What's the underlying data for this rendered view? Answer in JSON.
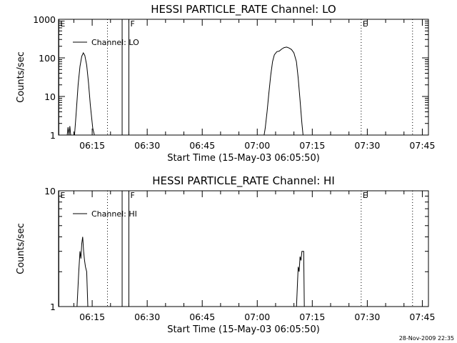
{
  "chart_data": [
    {
      "type": "line",
      "title": "HESSI PARTICLE_RATE Channel: LO",
      "xlabel": "Start Time (15-May-03 06:05:50)",
      "ylabel": "Counts/sec",
      "yscale": "log",
      "ylim": [
        1,
        1000
      ],
      "xlim": [
        "06:05:50",
        "07:46:40"
      ],
      "xticks": [
        "06:15",
        "06:30",
        "06:45",
        "07:00",
        "07:15",
        "07:30",
        "07:45"
      ],
      "yticks": [
        "1",
        "10",
        "100",
        "1000"
      ],
      "legend": {
        "position": "top-left",
        "entries": [
          "Channel: LO"
        ]
      },
      "markers": [
        {
          "label": "E",
          "time": "06:05:55",
          "style": "solid"
        },
        {
          "label": "",
          "time": "06:19:10",
          "style": "dotted"
        },
        {
          "label": "",
          "time": "06:23:10",
          "style": "solid"
        },
        {
          "label": "F",
          "time": "06:25:00",
          "style": "solid"
        },
        {
          "label": "E",
          "time": "07:28:20",
          "style": "dotted"
        },
        {
          "label": "",
          "time": "07:42:20",
          "style": "dotted"
        }
      ],
      "series": [
        {
          "name": "Channel: LO",
          "points": [
            [
              "06:08:10",
              0.9
            ],
            [
              "06:08:25",
              1.6
            ],
            [
              "06:08:40",
              1.0
            ],
            [
              "06:08:55",
              1.7
            ],
            [
              "06:09:10",
              0.9
            ],
            [
              "06:10:10",
              0.9
            ],
            [
              "06:10:40",
              4
            ],
            [
              "06:11:10",
              20
            ],
            [
              "06:11:40",
              60
            ],
            [
              "06:12:10",
              110
            ],
            [
              "06:12:35",
              135
            ],
            [
              "06:13:00",
              115
            ],
            [
              "06:13:30",
              65
            ],
            [
              "06:14:00",
              22
            ],
            [
              "06:14:30",
              6
            ],
            [
              "06:15:10",
              1.5
            ],
            [
              "06:15:40",
              0.9
            ],
            [
              "07:01:50",
              0.9
            ],
            [
              "07:02:10",
              1.5
            ],
            [
              "07:02:40",
              4
            ],
            [
              "07:03:10",
              12
            ],
            [
              "07:03:40",
              35
            ],
            [
              "07:04:10",
              80
            ],
            [
              "07:04:40",
              120
            ],
            [
              "07:05:20",
              145
            ],
            [
              "07:06:00",
              150
            ],
            [
              "07:06:40",
              170
            ],
            [
              "07:07:20",
              185
            ],
            [
              "07:08:00",
              190
            ],
            [
              "07:08:40",
              180
            ],
            [
              "07:09:20",
              165
            ],
            [
              "07:10:00",
              135
            ],
            [
              "07:10:40",
              80
            ],
            [
              "07:11:10",
              30
            ],
            [
              "07:11:40",
              8
            ],
            [
              "07:12:10",
              2
            ],
            [
              "07:12:30",
              0.9
            ]
          ]
        }
      ]
    },
    {
      "type": "line",
      "title": "HESSI PARTICLE_RATE Channel: HI",
      "xlabel": "Start Time (15-May-03 06:05:50)",
      "ylabel": "Counts/sec",
      "yscale": "log",
      "ylim": [
        1,
        10
      ],
      "xlim": [
        "06:05:50",
        "07:46:40"
      ],
      "xticks": [
        "06:15",
        "06:30",
        "06:45",
        "07:00",
        "07:15",
        "07:30",
        "07:45"
      ],
      "yticks": [
        "1",
        "10"
      ],
      "legend": {
        "position": "top-left",
        "entries": [
          "Channel: HI"
        ]
      },
      "markers": [
        {
          "label": "E",
          "time": "06:05:55",
          "style": "solid"
        },
        {
          "label": "",
          "time": "06:19:10",
          "style": "dotted"
        },
        {
          "label": "",
          "time": "06:23:10",
          "style": "solid"
        },
        {
          "label": "F",
          "time": "06:25:00",
          "style": "solid"
        },
        {
          "label": "E",
          "time": "07:28:20",
          "style": "dotted"
        },
        {
          "label": "",
          "time": "07:42:20",
          "style": "dotted"
        }
      ],
      "series": [
        {
          "name": "Channel: HI",
          "points": [
            [
              "06:10:50",
              0.95
            ],
            [
              "06:11:20",
              2
            ],
            [
              "06:11:40",
              3
            ],
            [
              "06:11:55",
              2.6
            ],
            [
              "06:12:10",
              3.5
            ],
            [
              "06:12:25",
              4
            ],
            [
              "06:12:40",
              3
            ],
            [
              "06:12:55",
              2.5
            ],
            [
              "06:13:10",
              2.2
            ],
            [
              "06:13:30",
              2
            ],
            [
              "06:13:50",
              0.95
            ],
            [
              "07:10:40",
              0.95
            ],
            [
              "07:11:00",
              1.7
            ],
            [
              "07:11:10",
              2.2
            ],
            [
              "07:11:25",
              2
            ],
            [
              "07:11:40",
              2.7
            ],
            [
              "07:11:55",
              2.5
            ],
            [
              "07:12:10",
              3
            ],
            [
              "07:12:40",
              3
            ],
            [
              "07:12:50",
              0.95
            ]
          ]
        }
      ]
    }
  ],
  "footer": {
    "date": "28-Nov-2009 22:35"
  }
}
